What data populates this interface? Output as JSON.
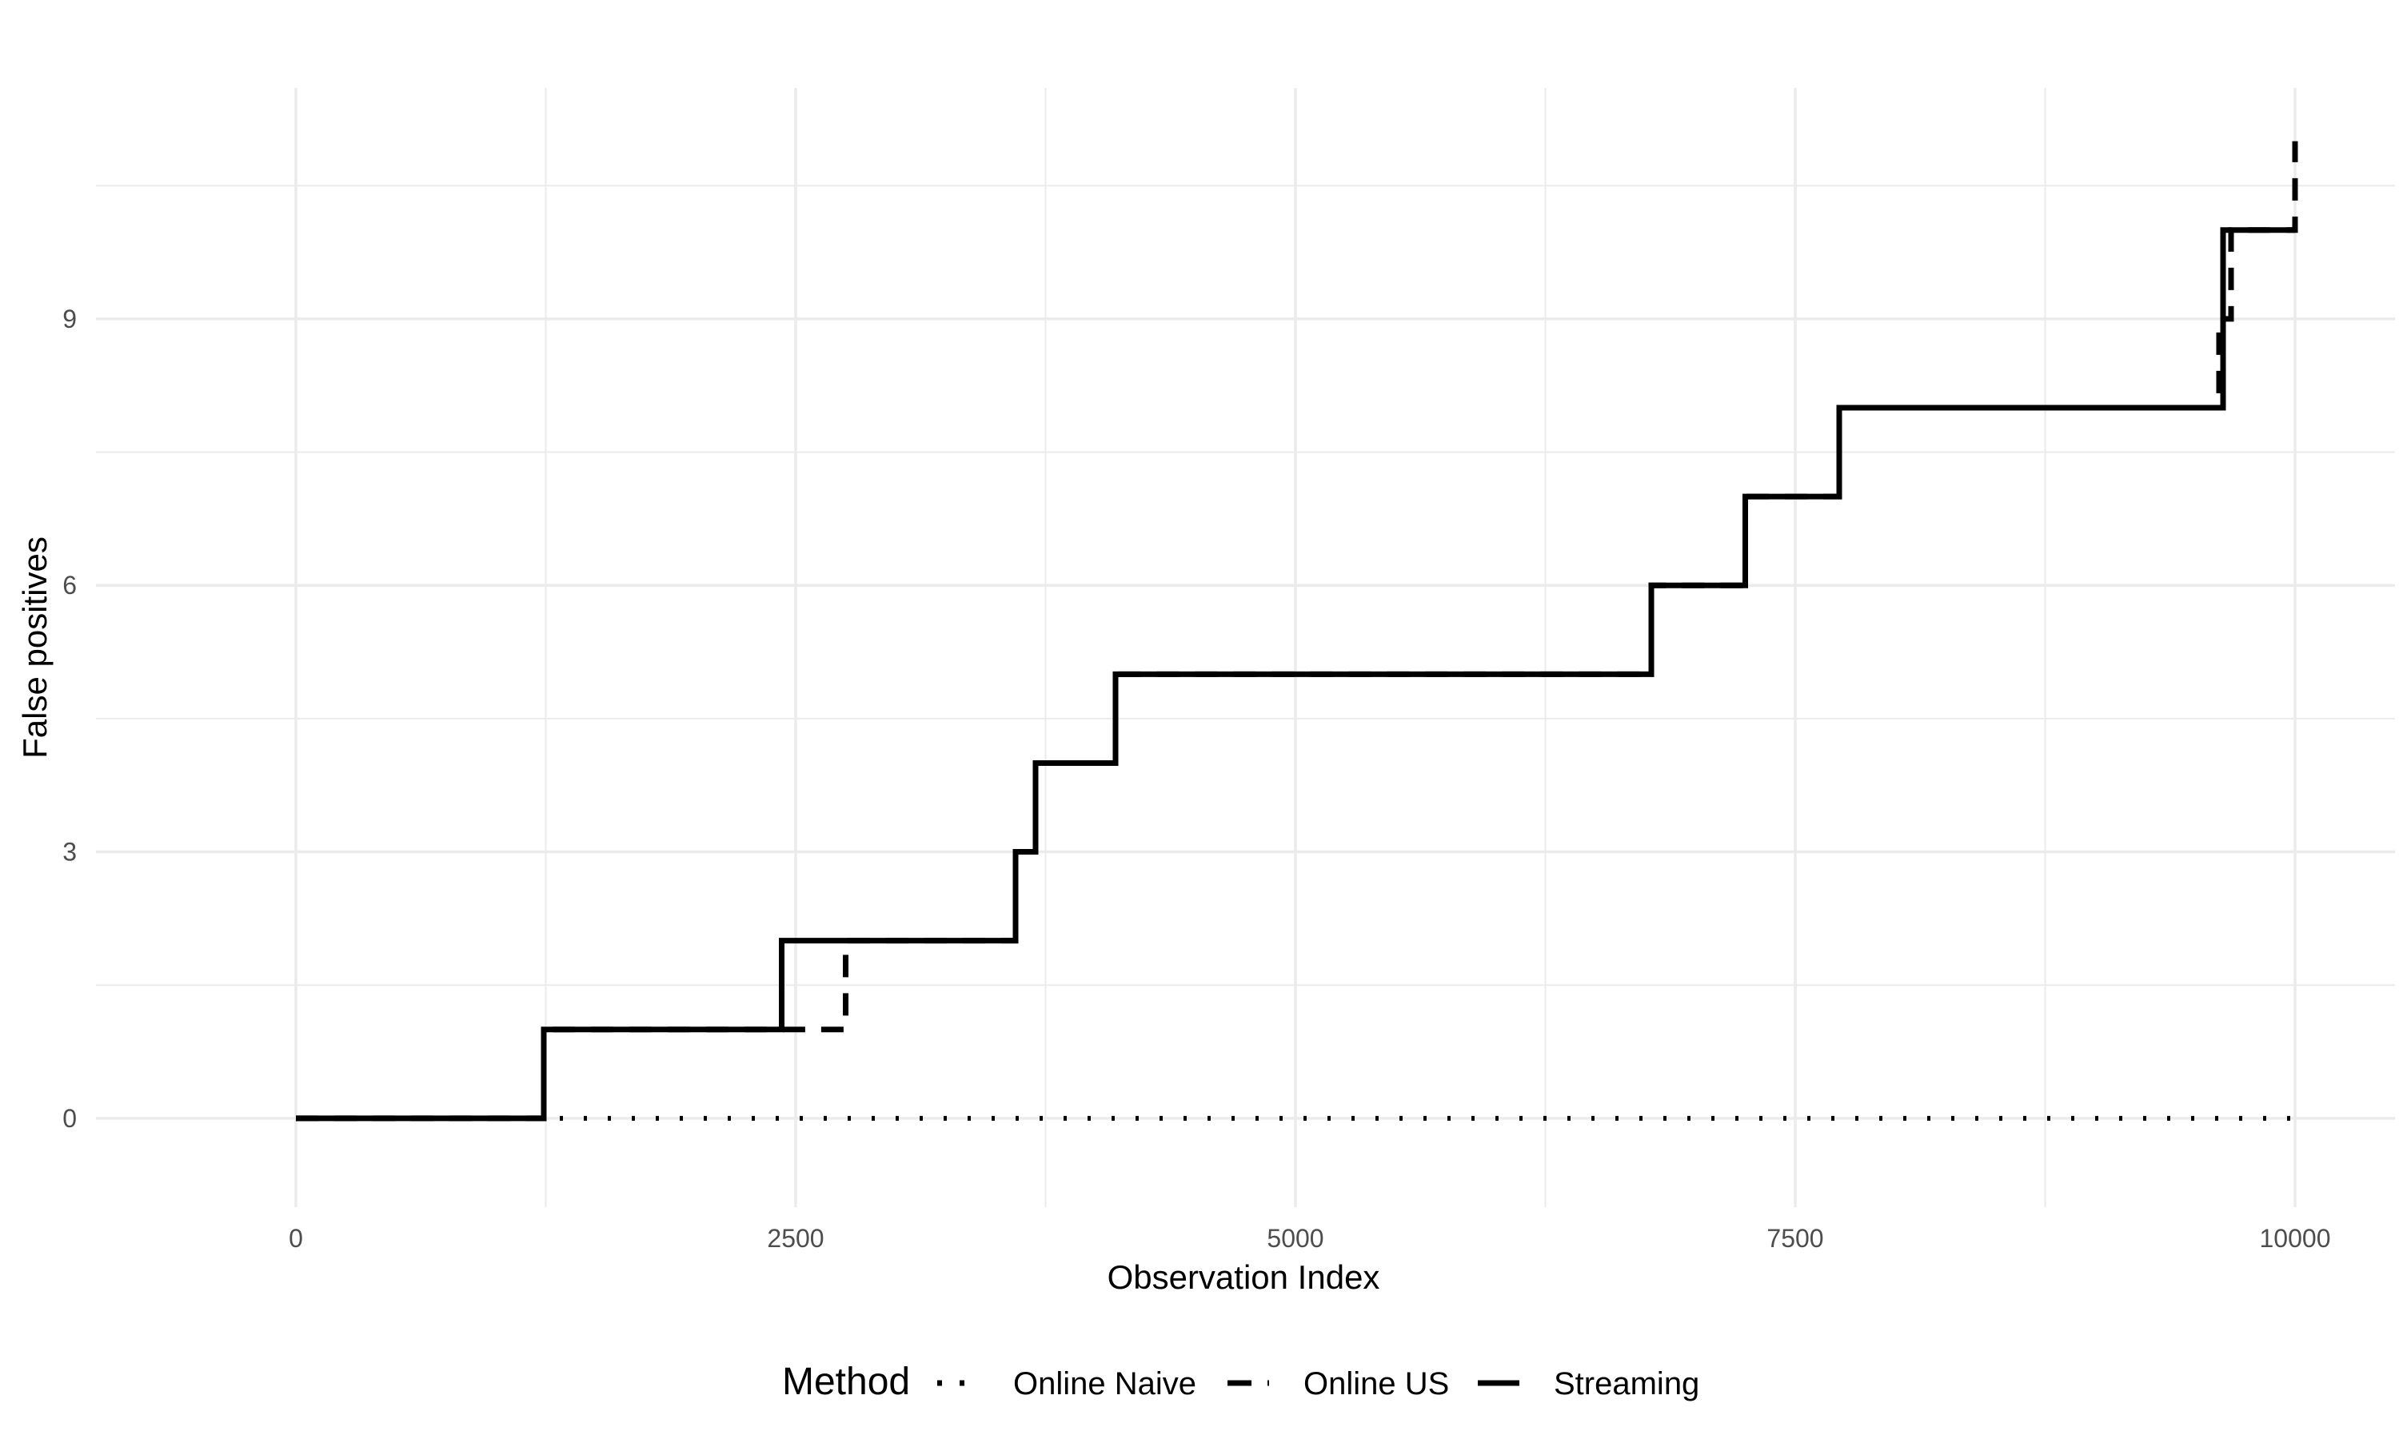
{
  "chart_data": {
    "type": "line",
    "step": true,
    "title": "",
    "xlabel": "Observation Index",
    "ylabel": "False positives",
    "xlim": [
      -1000,
      10500
    ],
    "ylim": [
      -1,
      11.6
    ],
    "x_ticks": [
      0,
      2500,
      5000,
      7500,
      10000
    ],
    "x_tick_labels": [
      "0",
      "2500",
      "5000",
      "7500",
      "10000"
    ],
    "y_ticks": [
      0,
      3,
      6,
      9
    ],
    "y_tick_labels": [
      "0",
      "3",
      "6",
      "9"
    ],
    "grid": true,
    "legend": {
      "title": "Method",
      "position": "bottom"
    },
    "line_color": "#000000",
    "grid_color": "#ebebeb",
    "series": [
      {
        "name": "Online Naive",
        "linetype": "dotted",
        "x": [
          0,
          10000
        ],
        "y": [
          0,
          0
        ]
      },
      {
        "name": "Online US",
        "linetype": "dashed",
        "x": [
          0,
          1240,
          2750,
          3600,
          3700,
          4100,
          6780,
          7250,
          7720,
          9620,
          9680,
          10000
        ],
        "y": [
          0,
          1,
          2,
          3,
          4,
          5,
          6,
          7,
          8,
          9,
          10,
          11
        ]
      },
      {
        "name": "Streaming",
        "linetype": "solid",
        "x": [
          0,
          1240,
          2430,
          3600,
          3700,
          4100,
          6780,
          7250,
          7720,
          9640,
          10000
        ],
        "y": [
          0,
          1,
          2,
          3,
          4,
          5,
          6,
          7,
          8,
          10,
          10
        ]
      }
    ]
  }
}
